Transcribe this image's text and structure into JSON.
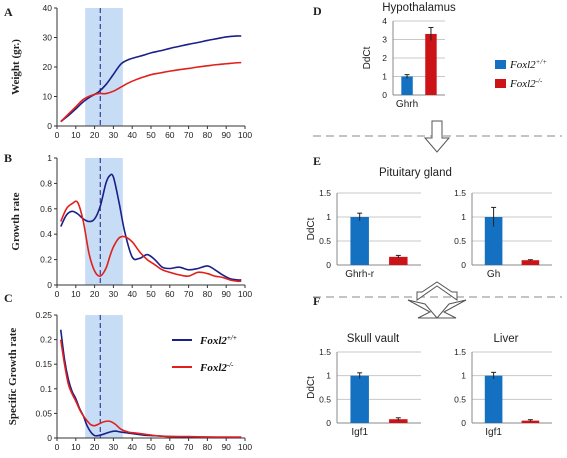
{
  "panel_letters": {
    "A": "A",
    "B": "B",
    "C": "C",
    "D": "D",
    "E": "E",
    "F": "F"
  },
  "colors": {
    "wt": "#1a1f8a",
    "ko": "#e0201c",
    "highlight": "#c7dcf5",
    "bar_wt": "#1470c0",
    "bar_ko": "#cc1418",
    "grid": "#c8c8c8",
    "dash": "#a0a0a0",
    "arrow_fill": "#ffffff",
    "arrow_stroke": "#555555"
  },
  "legend": {
    "gene": "Foxl2",
    "wt_sup": "+/+",
    "ko_sup": "-/-"
  },
  "chart_data": [
    {
      "id": "A",
      "type": "line",
      "ylabel": "Weight (gr.)",
      "xlim": [
        0,
        100
      ],
      "ylim": [
        0,
        40
      ],
      "xticks": [
        0,
        10,
        20,
        30,
        40,
        50,
        60,
        70,
        80,
        90,
        100
      ],
      "yticks": [
        0,
        10,
        20,
        30,
        40
      ],
      "highlight_x": [
        15,
        35
      ],
      "dashed_x": 23,
      "series": [
        {
          "key": "wt",
          "x": [
            2,
            6,
            10,
            14,
            18,
            22,
            26,
            30,
            34,
            38,
            42,
            46,
            50,
            55,
            60,
            65,
            70,
            75,
            80,
            85,
            90,
            95,
            98
          ],
          "y": [
            1.5,
            3.5,
            5.8,
            8.2,
            10,
            11.5,
            14,
            17.5,
            21,
            22.5,
            23.3,
            24,
            24.8,
            25.5,
            26.3,
            27,
            27.7,
            28.3,
            29,
            29.6,
            30.2,
            30.5,
            30.5
          ]
        },
        {
          "key": "ko",
          "x": [
            2,
            6,
            10,
            14,
            18,
            22,
            26,
            30,
            34,
            38,
            42,
            46,
            50,
            55,
            60,
            65,
            70,
            75,
            80,
            85,
            90,
            95,
            98
          ],
          "y": [
            1.5,
            4,
            6.5,
            9,
            10.3,
            11,
            11,
            11.8,
            13.2,
            14.6,
            15.7,
            16.6,
            17.4,
            18,
            18.6,
            19.1,
            19.5,
            20,
            20.4,
            20.8,
            21.1,
            21.4,
            21.5
          ]
        }
      ]
    },
    {
      "id": "B",
      "type": "line",
      "ylabel": "Growth rate",
      "xlim": [
        0,
        100
      ],
      "ylim": [
        0,
        1
      ],
      "xticks": [
        0,
        10,
        20,
        30,
        40,
        50,
        60,
        70,
        80,
        90,
        100
      ],
      "yticks": [
        0,
        0.2,
        0.4,
        0.6,
        0.8,
        1
      ],
      "highlight_x": [
        15,
        35
      ],
      "dashed_x": 23,
      "series": [
        {
          "key": "wt",
          "x": [
            2,
            5,
            8,
            11,
            14,
            17,
            20,
            23,
            26,
            28,
            30,
            33,
            36,
            40,
            44,
            48,
            52,
            56,
            60,
            65,
            70,
            75,
            80,
            84,
            88,
            92,
            96,
            98
          ],
          "y": [
            0.46,
            0.55,
            0.58,
            0.56,
            0.52,
            0.5,
            0.52,
            0.62,
            0.8,
            0.86,
            0.85,
            0.65,
            0.42,
            0.22,
            0.21,
            0.24,
            0.2,
            0.14,
            0.13,
            0.14,
            0.12,
            0.13,
            0.15,
            0.12,
            0.08,
            0.05,
            0.04,
            0.04
          ]
        },
        {
          "key": "ko",
          "x": [
            2,
            5,
            8,
            11,
            14,
            17,
            20,
            23,
            26,
            28,
            30,
            33,
            36,
            40,
            44,
            48,
            52,
            56,
            60,
            65,
            70,
            75,
            80,
            84,
            88,
            92,
            96,
            98
          ],
          "y": [
            0.5,
            0.6,
            0.64,
            0.65,
            0.5,
            0.25,
            0.11,
            0.07,
            0.13,
            0.22,
            0.3,
            0.37,
            0.38,
            0.34,
            0.26,
            0.2,
            0.16,
            0.12,
            0.1,
            0.08,
            0.07,
            0.1,
            0.09,
            0.07,
            0.06,
            0.04,
            0.03,
            0.03
          ]
        }
      ]
    },
    {
      "id": "C",
      "type": "line",
      "ylabel": "Specific Growth rate",
      "xlim": [
        0,
        100
      ],
      "ylim": [
        0,
        0.25
      ],
      "xticks": [
        0,
        10,
        20,
        30,
        40,
        50,
        60,
        70,
        80,
        90,
        100
      ],
      "yticks": [
        0,
        0.05,
        0.1,
        0.15,
        0.2,
        0.25
      ],
      "highlight_x": [
        15,
        35
      ],
      "dashed_x": 23,
      "series": [
        {
          "key": "wt",
          "x": [
            2,
            4,
            6,
            8,
            10,
            12,
            14,
            16,
            18,
            20,
            22,
            25,
            28,
            31,
            34,
            38,
            42,
            46,
            50,
            55,
            60,
            70,
            80,
            90,
            98
          ],
          "y": [
            0.22,
            0.16,
            0.12,
            0.095,
            0.08,
            0.06,
            0.045,
            0.025,
            0.012,
            0.005,
            0.005,
            0.008,
            0.012,
            0.014,
            0.012,
            0.01,
            0.008,
            0.006,
            0.005,
            0.004,
            0.003,
            0.002,
            0.002,
            0.001,
            0.001
          ]
        },
        {
          "key": "ko",
          "x": [
            2,
            4,
            6,
            8,
            10,
            12,
            14,
            16,
            18,
            20,
            22,
            25,
            28,
            31,
            34,
            38,
            42,
            46,
            50,
            55,
            60,
            70,
            80,
            90,
            98
          ],
          "y": [
            0.2,
            0.15,
            0.11,
            0.09,
            0.075,
            0.058,
            0.045,
            0.035,
            0.027,
            0.025,
            0.028,
            0.033,
            0.034,
            0.028,
            0.018,
            0.012,
            0.01,
            0.008,
            0.006,
            0.004,
            0.003,
            0.003,
            0.002,
            0.002,
            0.002
          ]
        }
      ]
    },
    {
      "id": "D",
      "type": "bar",
      "title": "Hypothalamus",
      "ylabel": "DdCt",
      "ylim": [
        0,
        4
      ],
      "yticks": [
        0,
        1,
        2,
        3,
        4
      ],
      "xlabel": "Ghrh",
      "values": [
        1.0,
        3.3
      ],
      "errors": [
        0.1,
        0.35
      ]
    },
    {
      "id": "E1",
      "type": "bar",
      "ylabel": "DdCt",
      "ylim": [
        0,
        1.5
      ],
      "yticks": [
        0,
        0.5,
        1,
        1.5
      ],
      "xlabel": "Ghrh-r",
      "values": [
        1.0,
        0.17
      ],
      "errors": [
        0.08,
        0.03
      ]
    },
    {
      "id": "E2",
      "type": "bar",
      "ylim": [
        0,
        1.5
      ],
      "yticks": [
        0,
        0.5,
        1,
        1.5
      ],
      "xlabel": "Gh",
      "values": [
        1.0,
        0.1
      ],
      "errors": [
        0.2,
        0.01
      ]
    },
    {
      "id": "F1",
      "type": "bar",
      "title": "Skull vault",
      "ylabel": "DdCt",
      "ylim": [
        0,
        1.5
      ],
      "yticks": [
        0,
        0.5,
        1,
        1.5
      ],
      "xlabel": "Igf1",
      "values": [
        1.0,
        0.08
      ],
      "errors": [
        0.06,
        0.03
      ]
    },
    {
      "id": "F2",
      "type": "bar",
      "title": "Liver",
      "ylim": [
        0,
        1.5
      ],
      "yticks": [
        0,
        0.5,
        1,
        1.5
      ],
      "xlabel": "Igf1",
      "values": [
        1.0,
        0.05
      ],
      "errors": [
        0.07,
        0.02
      ]
    }
  ],
  "section_title_E": "Pituitary gland"
}
